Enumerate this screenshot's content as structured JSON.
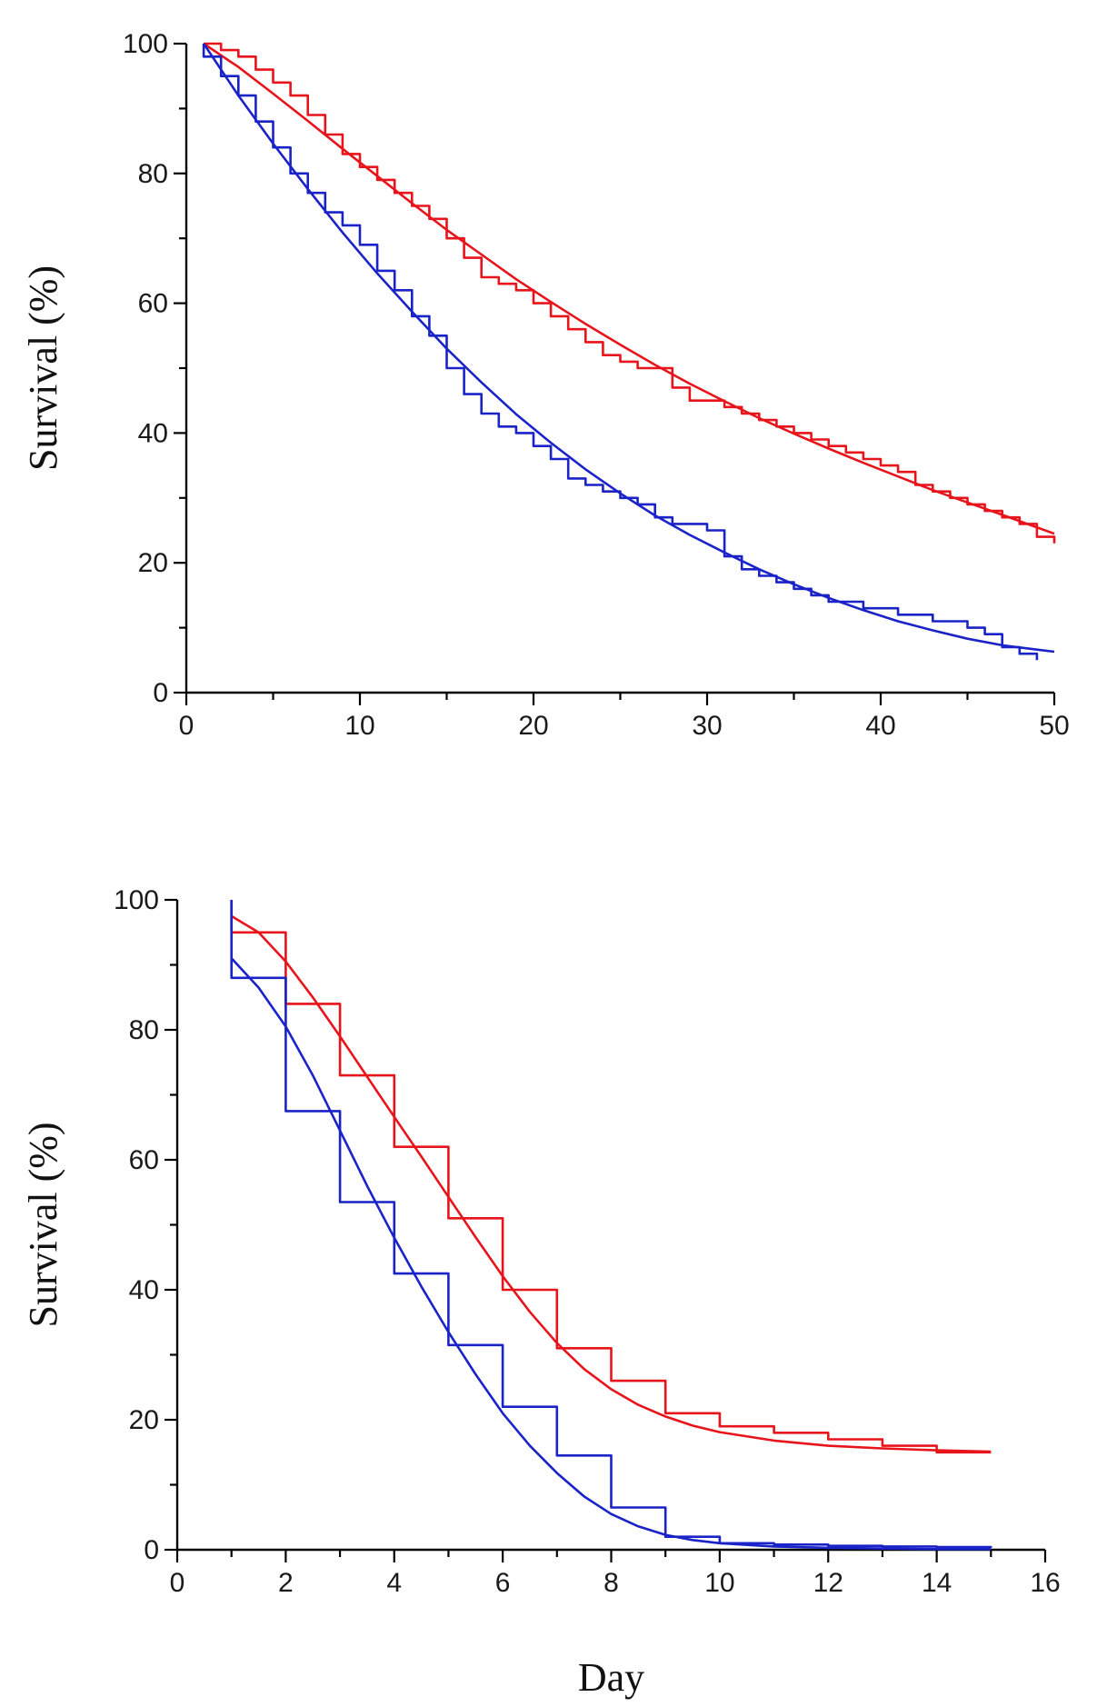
{
  "chart_data": [
    {
      "type": "line",
      "title": "",
      "xlabel": "",
      "ylabel": "Survival (%)",
      "xlim": [
        0,
        50
      ],
      "ylim": [
        0,
        100
      ],
      "xticks": [
        0,
        10,
        20,
        30,
        40,
        50
      ],
      "xtick_labels": [
        "0",
        "10",
        "20",
        "30",
        "40",
        "50"
      ],
      "yticks": [
        0,
        20,
        40,
        60,
        80,
        100
      ],
      "ytick_labels": [
        "0",
        "20",
        "40",
        "60",
        "80",
        "100"
      ],
      "grid": false,
      "series": [
        {
          "name": "red-stepwise",
          "color": "#e8141b",
          "style": "step",
          "x": [
            1,
            2,
            3,
            4,
            5,
            6,
            7,
            8,
            9,
            10,
            11,
            12,
            13,
            14,
            15,
            16,
            17,
            18,
            19,
            20,
            21,
            22,
            23,
            24,
            25,
            26,
            27,
            28,
            29,
            30,
            31,
            32,
            33,
            34,
            35,
            36,
            37,
            38,
            39,
            40,
            41,
            42,
            43,
            44,
            45,
            46,
            47,
            48,
            49,
            50
          ],
          "values": [
            100,
            99,
            98,
            96,
            94,
            92,
            89,
            86,
            83,
            81,
            79,
            77,
            75,
            73,
            70,
            67,
            64,
            63,
            62,
            60,
            58,
            56,
            54,
            52,
            51,
            50,
            50,
            47,
            45,
            45,
            44,
            43,
            42,
            41,
            40,
            39,
            38,
            37,
            36,
            35,
            34,
            32,
            31,
            30,
            29,
            28,
            27,
            26,
            24,
            23
          ]
        },
        {
          "name": "red-fit",
          "color": "#e8141b",
          "style": "fit",
          "x": [
            1,
            3,
            5,
            7,
            9,
            11,
            13,
            15,
            17,
            19,
            21,
            23,
            25,
            27,
            29,
            31,
            33,
            35,
            37,
            39,
            41,
            43,
            45,
            47,
            50
          ],
          "values": [
            100,
            96.4,
            92.3,
            88.1,
            83.8,
            79.6,
            75.4,
            71.3,
            67.5,
            63.7,
            60.2,
            56.8,
            53.6,
            50.5,
            47.6,
            44.9,
            42.3,
            39.9,
            37.6,
            35.4,
            33.3,
            31.2,
            29.3,
            27.4,
            24.5
          ]
        },
        {
          "name": "blue-stepwise",
          "color": "#1a23c8",
          "style": "step",
          "x": [
            1,
            2,
            3,
            4,
            5,
            6,
            7,
            8,
            9,
            10,
            11,
            12,
            13,
            14,
            15,
            16,
            17,
            18,
            19,
            20,
            21,
            22,
            23,
            24,
            25,
            26,
            27,
            28,
            29,
            30,
            31,
            32,
            33,
            34,
            35,
            36,
            37,
            38,
            39,
            40,
            41,
            42,
            43,
            44,
            45,
            46,
            47,
            48,
            49
          ],
          "values": [
            98,
            95,
            92,
            88,
            84,
            80,
            77,
            74,
            72,
            69,
            65,
            62,
            58,
            55,
            50,
            46,
            43,
            41,
            40,
            38,
            36,
            33,
            32,
            31,
            30,
            29,
            27,
            26,
            26,
            25,
            21,
            19,
            18,
            17,
            16,
            15,
            14,
            14,
            13,
            13,
            12,
            12,
            11,
            11,
            10,
            9,
            7,
            6,
            5
          ]
        },
        {
          "name": "blue-fit",
          "color": "#1a23c8",
          "style": "fit",
          "x": [
            1,
            3,
            5,
            7,
            9,
            11,
            13,
            15,
            17,
            19,
            21,
            23,
            25,
            27,
            29,
            31,
            33,
            35,
            37,
            39,
            41,
            43,
            45,
            47,
            50
          ],
          "values": [
            100,
            92.0,
            84.6,
            77.6,
            70.9,
            64.6,
            58.7,
            53.0,
            47.8,
            42.9,
            38.5,
            34.4,
            30.7,
            27.3,
            24.3,
            21.6,
            19.0,
            16.7,
            14.6,
            12.7,
            11.0,
            9.6,
            8.3,
            7.3,
            6.3
          ]
        }
      ]
    },
    {
      "type": "line",
      "title": "",
      "xlabel": "Day",
      "ylabel": "Survival (%)",
      "xlim": [
        0,
        16
      ],
      "ylim": [
        0,
        100
      ],
      "xticks": [
        0,
        2,
        4,
        6,
        8,
        10,
        12,
        14,
        16
      ],
      "xtick_labels": [
        "0",
        "2",
        "4",
        "6",
        "8",
        "10",
        "12",
        "14",
        "16"
      ],
      "yticks": [
        0,
        20,
        40,
        60,
        80,
        100
      ],
      "ytick_labels": [
        "0",
        "20",
        "40",
        "60",
        "80",
        "100"
      ],
      "grid": false,
      "series": [
        {
          "name": "red-stepwise",
          "color": "#e8141b",
          "style": "step",
          "x": [
            1,
            2,
            3,
            4,
            5,
            6,
            7,
            8,
            9,
            10,
            11,
            12,
            13,
            14,
            15
          ],
          "values": [
            95,
            84,
            73,
            62,
            51,
            40,
            31,
            26,
            21,
            19,
            18,
            17,
            16,
            15,
            15
          ]
        },
        {
          "name": "red-fit",
          "color": "#e8141b",
          "style": "fit",
          "x": [
            1,
            1.5,
            2,
            2.5,
            3,
            3.5,
            4,
            4.5,
            5,
            5.5,
            6,
            6.5,
            7,
            7.5,
            8,
            8.5,
            9,
            9.5,
            10,
            11,
            12,
            13,
            14,
            15
          ],
          "values": [
            97.5,
            95.0,
            90.5,
            85.0,
            79.0,
            72.8,
            66.6,
            60.5,
            54.3,
            48.1,
            42.1,
            36.6,
            31.8,
            27.8,
            24.7,
            22.3,
            20.5,
            19.1,
            18.1,
            16.8,
            16.0,
            15.6,
            15.3,
            15.1
          ]
        },
        {
          "name": "blue-stepwise",
          "color": "#1a23c8",
          "style": "step",
          "x": [
            1,
            2,
            3,
            4,
            5,
            6,
            7,
            8,
            9,
            10,
            11,
            12,
            13,
            14,
            15
          ],
          "values": [
            88,
            67.5,
            53.5,
            42.5,
            31.5,
            22,
            14.5,
            6.5,
            2,
            1,
            0.8,
            0.6,
            0.5,
            0.4,
            0.3
          ]
        },
        {
          "name": "blue-fit",
          "color": "#1a23c8",
          "style": "fit",
          "x": [
            1,
            1.5,
            2,
            2.5,
            3,
            3.5,
            4,
            4.5,
            5,
            5.5,
            6,
            6.5,
            7,
            7.5,
            8,
            8.5,
            9,
            9.5,
            10,
            11,
            12,
            13,
            14,
            15
          ],
          "values": [
            91,
            86.5,
            80.5,
            73.0,
            64.5,
            56.0,
            48.0,
            40.5,
            33.5,
            27.0,
            21.0,
            16.0,
            11.8,
            8.2,
            5.5,
            3.6,
            2.3,
            1.5,
            1.0,
            0.5,
            0.3,
            0.2,
            0.1,
            0.1
          ]
        }
      ]
    }
  ]
}
